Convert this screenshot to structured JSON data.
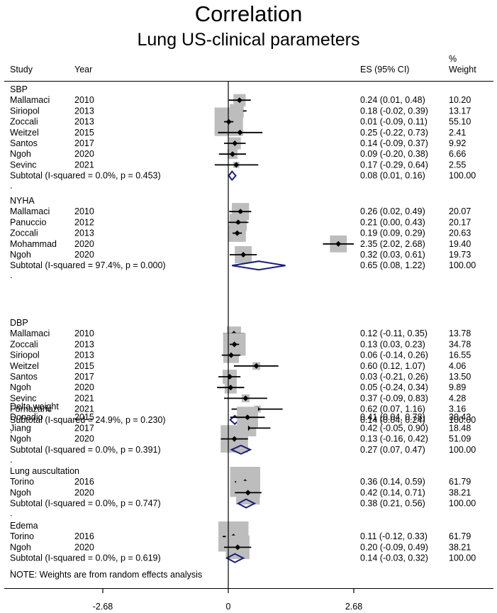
{
  "title": "Correlation",
  "subtitle": "Lung US-clinical parameters",
  "columns": {
    "study": "Study",
    "year": "Year",
    "es": "ES (95% CI)",
    "weight_line1": "%",
    "weight_line2": "Weight"
  },
  "note": "NOTE: Weights are from random effects analysis",
  "colors": {
    "box": "#bdbdbd",
    "diamond": "#1b1f7a",
    "line": "#000000"
  },
  "chart_data": {
    "type": "forest",
    "xlim": [
      -2.68,
      2.68
    ],
    "xticks": [
      {
        "value": -2.68,
        "label": "-2.68"
      },
      {
        "value": 0,
        "label": "0"
      },
      {
        "value": 2.68,
        "label": "2.68"
      }
    ],
    "groups": [
      {
        "name": "SBP",
        "studies": [
          {
            "study": "Mallamaci",
            "year": "2010",
            "es": 0.24,
            "lo": 0.01,
            "hi": 0.48,
            "es_text": "0.24 (0.01, 0.48)",
            "weight": 10.2,
            "weight_text": "10.20"
          },
          {
            "study": "Siriopol",
            "year": "2013",
            "es": 0.18,
            "lo": -0.02,
            "hi": 0.39,
            "es_text": "0.18 (-0.02, 0.39)",
            "weight": 13.17,
            "weight_text": "13.17"
          },
          {
            "study": "Zoccali",
            "year": "2013",
            "es": 0.01,
            "lo": -0.09,
            "hi": 0.11,
            "es_text": "0.01 (-0.09, 0.11)",
            "weight": 55.1,
            "weight_text": "55.10"
          },
          {
            "study": "Weitzel",
            "year": "2015",
            "es": 0.25,
            "lo": -0.22,
            "hi": 0.73,
            "es_text": "0.25 (-0.22, 0.73)",
            "weight": 2.41,
            "weight_text": "2.41"
          },
          {
            "study": "Santos",
            "year": "2017",
            "es": 0.14,
            "lo": -0.09,
            "hi": 0.37,
            "es_text": "0.14 (-0.09, 0.37)",
            "weight": 9.92,
            "weight_text": "9.92"
          },
          {
            "study": "Ngoh",
            "year": "2020",
            "es": 0.09,
            "lo": -0.2,
            "hi": 0.38,
            "es_text": "0.09 (-0.20, 0.38)",
            "weight": 6.66,
            "weight_text": "6.66"
          },
          {
            "study": "Sevinc",
            "year": "2021",
            "es": 0.17,
            "lo": -0.29,
            "hi": 0.64,
            "es_text": "0.17 (-0.29, 0.64)",
            "weight": 2.55,
            "weight_text": "2.55"
          }
        ],
        "subtotal": {
          "label": "Subtotal  (I-squared = 0.0%, p = 0.453)",
          "es": 0.08,
          "lo": 0.01,
          "hi": 0.16,
          "es_text": "0.08 (0.01, 0.16)",
          "weight_text": "100.00"
        }
      },
      {
        "name": "NYHA",
        "studies": [
          {
            "study": "Mallamaci",
            "year": "2010",
            "es": 0.26,
            "lo": 0.02,
            "hi": 0.49,
            "es_text": "0.26 (0.02, 0.49)",
            "weight": 20.07,
            "weight_text": "20.07"
          },
          {
            "study": "Panuccio",
            "year": "2012",
            "es": 0.21,
            "lo": 0.0,
            "hi": 0.43,
            "es_text": "0.21 (0.00, 0.43)",
            "weight": 20.17,
            "weight_text": "20.17"
          },
          {
            "study": "Zoccali",
            "year": "2013",
            "es": 0.19,
            "lo": 0.09,
            "hi": 0.29,
            "es_text": "0.19 (0.09, 0.29)",
            "weight": 20.63,
            "weight_text": "20.63"
          },
          {
            "study": "Mohammad",
            "year": "2020",
            "es": 2.35,
            "lo": 2.02,
            "hi": 2.68,
            "es_text": "2.35 (2.02, 2.68)",
            "weight": 19.4,
            "weight_text": "19.40"
          },
          {
            "study": "Ngoh",
            "year": "2020",
            "es": 0.32,
            "lo": 0.03,
            "hi": 0.61,
            "es_text": "0.32 (0.03, 0.61)",
            "weight": 19.73,
            "weight_text": "19.73"
          }
        ],
        "subtotal": {
          "label": "Subtotal  (I-squared = 97.4%, p = 0.000)",
          "es": 0.65,
          "lo": 0.08,
          "hi": 1.22,
          "es_text": "0.65 (0.08, 1.22)",
          "weight_text": "100.00"
        }
      },
      {
        "name": "DBP",
        "studies": [
          {
            "study": "Mallamaci",
            "year": "2010",
            "es": 0.12,
            "lo": -0.11,
            "hi": 0.35,
            "es_text": "0.12 (-0.11, 0.35)",
            "weight": 13.78,
            "weight_text": "13.78"
          },
          {
            "study": "Zoccali",
            "year": "2013",
            "es": 0.13,
            "lo": 0.03,
            "hi": 0.23,
            "es_text": "0.13 (0.03, 0.23)",
            "weight": 34.78,
            "weight_text": "34.78"
          },
          {
            "study": "Siriopol",
            "year": "2013",
            "es": 0.06,
            "lo": -0.14,
            "hi": 0.26,
            "es_text": "0.06 (-0.14, 0.26)",
            "weight": 16.55,
            "weight_text": "16.55"
          },
          {
            "study": "Weitzel",
            "year": "2015",
            "es": 0.6,
            "lo": 0.12,
            "hi": 1.07,
            "es_text": "0.60 (0.12, 1.07)",
            "weight": 4.06,
            "weight_text": "4.06"
          },
          {
            "study": "Santos",
            "year": "2017",
            "es": 0.03,
            "lo": -0.21,
            "hi": 0.26,
            "es_text": "0.03 (-0.21, 0.26)",
            "weight": 13.5,
            "weight_text": "13.50"
          },
          {
            "study": "Ngoh",
            "year": "2020",
            "es": 0.05,
            "lo": -0.24,
            "hi": 0.34,
            "es_text": "0.05 (-0.24, 0.34)",
            "weight": 9.89,
            "weight_text": "9.89"
          },
          {
            "study": "Sevinc",
            "year": "2021",
            "es": 0.37,
            "lo": -0.09,
            "hi": 0.83,
            "es_text": "0.37 (-0.09, 0.83)",
            "weight": 4.28,
            "weight_text": "4.28"
          },
          {
            "study": "Fornazaric",
            "year": "2021",
            "es": 0.62,
            "lo": 0.07,
            "hi": 1.16,
            "es_text": "0.62 (0.07, 1.16)",
            "weight": 3.16,
            "weight_text": "3.16"
          }
        ],
        "subtotal": {
          "label": "Subtotal  (I-squared = 24.9%, p = 0.230)",
          "es": 0.14,
          "lo": 0.04,
          "hi": 0.24,
          "es_text": "0.14 (0.04, 0.24)",
          "weight_text": "100.00"
        }
      },
      {
        "name": "Delta weight",
        "studies": [
          {
            "study": "Donadio",
            "year": "2015",
            "es": 0.41,
            "lo": 0.04,
            "hi": 0.78,
            "es_text": "0.41 (0.04, 0.78)",
            "weight": 30.43,
            "weight_text": "30.43"
          },
          {
            "study": "Jiang",
            "year": "2017",
            "es": 0.42,
            "lo": -0.05,
            "hi": 0.9,
            "es_text": "0.42 (-0.05, 0.90)",
            "weight": 18.48,
            "weight_text": "18.48"
          },
          {
            "study": "Ngoh",
            "year": "2020",
            "es": 0.13,
            "lo": -0.16,
            "hi": 0.42,
            "es_text": "0.13 (-0.16, 0.42)",
            "weight": 51.09,
            "weight_text": "51.09"
          }
        ],
        "subtotal": {
          "label": "Subtotal  (I-squared = 0.0%, p = 0.391)",
          "es": 0.27,
          "lo": 0.07,
          "hi": 0.47,
          "es_text": "0.27 (0.07, 0.47)",
          "weight_text": "100.00"
        }
      },
      {
        "name": "Lung auscultation",
        "studies": [
          {
            "study": "Torino",
            "year": "2016",
            "es": 0.36,
            "lo": 0.14,
            "hi": 0.59,
            "es_text": "0.36 (0.14, 0.59)",
            "weight": 61.79,
            "weight_text": "61.79"
          },
          {
            "study": "Ngoh",
            "year": "2020",
            "es": 0.42,
            "lo": 0.14,
            "hi": 0.71,
            "es_text": "0.42 (0.14, 0.71)",
            "weight": 38.21,
            "weight_text": "38.21"
          }
        ],
        "subtotal": {
          "label": "Subtotal  (I-squared = 0.0%, p = 0.747)",
          "es": 0.38,
          "lo": 0.21,
          "hi": 0.56,
          "es_text": "0.38 (0.21, 0.56)",
          "weight_text": "100.00"
        }
      },
      {
        "name": "Edema",
        "studies": [
          {
            "study": "Torino",
            "year": "2016",
            "es": 0.11,
            "lo": -0.12,
            "hi": 0.33,
            "es_text": "0.11 (-0.12, 0.33)",
            "weight": 61.79,
            "weight_text": "61.79"
          },
          {
            "study": "Ngoh",
            "year": "2020",
            "es": 0.2,
            "lo": -0.09,
            "hi": 0.49,
            "es_text": "0.20 (-0.09, 0.49)",
            "weight": 38.21,
            "weight_text": "38.21"
          }
        ],
        "subtotal": {
          "label": "Subtotal  (I-squared = 0.0%, p = 0.619)",
          "es": 0.14,
          "lo": -0.03,
          "hi": 0.32,
          "es_text": "0.14 (-0.03, 0.32)",
          "weight_text": "100.00"
        }
      }
    ]
  }
}
